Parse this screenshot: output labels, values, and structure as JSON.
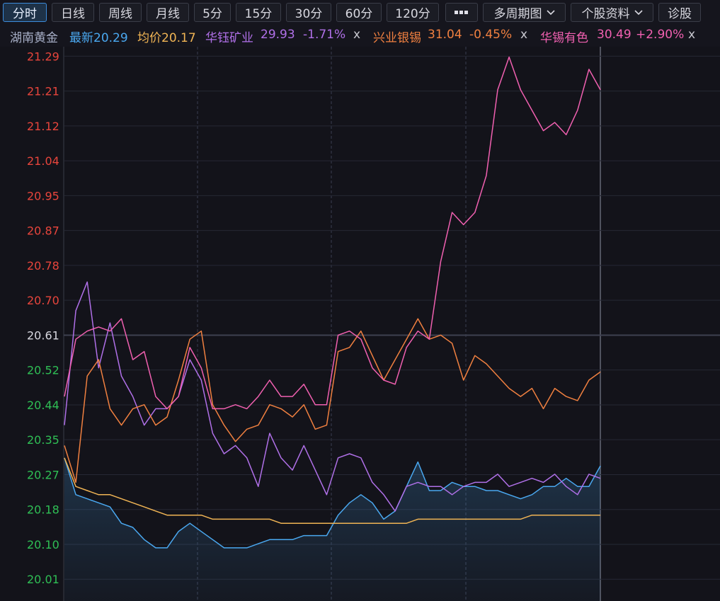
{
  "toolbar": {
    "tabs": [
      "分时",
      "日线",
      "周线",
      "月线",
      "5分",
      "15分",
      "30分",
      "60分",
      "120分"
    ],
    "menus": [
      "多周期图",
      "个股资料"
    ],
    "diagnose": "诊股"
  },
  "chart_data": {
    "type": "line",
    "stock": "湖南黄金",
    "categories": [
      null,
      null,
      null,
      null,
      null,
      null,
      null,
      null,
      null,
      null,
      null,
      null,
      null,
      null,
      null,
      null,
      null,
      null,
      null,
      null,
      null,
      null,
      null,
      null,
      null,
      null,
      null,
      null,
      null,
      null,
      null,
      null,
      null,
      null,
      null,
      null,
      null,
      null,
      null,
      null,
      null,
      null,
      null,
      null,
      null,
      null,
      null,
      null
    ],
    "series": [
      {
        "name": "最新20.29",
        "color": "#4aa8f0",
        "area": true,
        "values": [
          20.31,
          20.22,
          20.21,
          20.2,
          20.19,
          20.15,
          20.14,
          20.11,
          20.09,
          20.09,
          20.13,
          20.15,
          20.13,
          20.11,
          20.09,
          20.09,
          20.09,
          20.1,
          20.11,
          20.11,
          20.11,
          20.12,
          20.12,
          20.12,
          20.17,
          20.2,
          20.22,
          20.2,
          20.16,
          20.18,
          20.24,
          20.3,
          20.23,
          20.23,
          20.25,
          20.24,
          20.24,
          20.23,
          20.23,
          20.22,
          20.21,
          20.22,
          20.24,
          20.24,
          20.26,
          20.24,
          20.24,
          20.29
        ]
      },
      {
        "name": "均价20.17",
        "color": "#f0b454",
        "values": [
          20.31,
          20.24,
          20.23,
          20.22,
          20.22,
          20.21,
          20.2,
          20.19,
          20.18,
          20.17,
          20.17,
          20.17,
          20.17,
          20.16,
          20.16,
          20.16,
          20.16,
          20.16,
          20.16,
          20.15,
          20.15,
          20.15,
          20.15,
          20.15,
          20.15,
          20.15,
          20.15,
          20.15,
          20.15,
          20.15,
          20.15,
          20.16,
          20.16,
          20.16,
          20.16,
          20.16,
          20.16,
          20.16,
          20.16,
          20.16,
          20.16,
          20.17,
          20.17,
          20.17,
          20.17,
          20.17,
          20.17,
          20.17
        ]
      },
      {
        "name": "华钰矿业",
        "price": "29.93",
        "change": "-1.71%",
        "close": "x",
        "color": "#b070e8",
        "values": [
          20.39,
          20.67,
          20.74,
          20.53,
          20.64,
          20.51,
          20.46,
          20.39,
          20.43,
          20.43,
          20.46,
          20.55,
          20.5,
          20.37,
          20.32,
          20.34,
          20.31,
          20.24,
          20.37,
          20.31,
          20.28,
          20.34,
          20.28,
          20.22,
          20.31,
          20.32,
          20.31,
          20.25,
          20.22,
          20.18,
          20.24,
          20.25,
          20.24,
          20.24,
          20.22,
          20.24,
          20.25,
          20.25,
          20.27,
          20.24,
          20.25,
          20.26,
          20.25,
          20.27,
          20.24,
          20.22,
          20.27,
          20.26
        ]
      },
      {
        "name": "兴业银锡",
        "price": "31.04",
        "change": "-0.45%",
        "close": "x",
        "color": "#f08040",
        "values": [
          20.34,
          20.25,
          20.51,
          20.55,
          20.43,
          20.39,
          20.43,
          20.44,
          20.39,
          20.41,
          20.5,
          20.6,
          20.62,
          20.44,
          20.39,
          20.35,
          20.38,
          20.39,
          20.44,
          20.43,
          20.41,
          20.44,
          20.38,
          20.39,
          20.57,
          20.58,
          20.62,
          20.56,
          20.5,
          20.55,
          20.6,
          20.65,
          20.6,
          20.61,
          20.59,
          20.5,
          20.56,
          20.54,
          20.51,
          20.48,
          20.46,
          20.48,
          20.43,
          20.48,
          20.46,
          20.45,
          20.5,
          20.52
        ]
      },
      {
        "name": "华锡有色",
        "price": "30.49",
        "change": "+2.90%",
        "close": "x",
        "color": "#f060b0",
        "values": [
          20.46,
          20.6,
          20.62,
          20.63,
          20.62,
          20.65,
          20.55,
          20.57,
          20.46,
          20.43,
          20.46,
          20.58,
          20.53,
          20.43,
          20.43,
          20.44,
          20.43,
          20.46,
          20.5,
          20.46,
          20.46,
          20.49,
          20.44,
          20.44,
          20.61,
          20.62,
          20.6,
          20.53,
          20.5,
          20.49,
          20.58,
          20.62,
          20.6,
          20.79,
          20.91,
          20.88,
          20.91,
          21.0,
          21.21,
          21.29,
          21.21,
          21.16,
          21.11,
          21.13,
          21.1,
          21.16,
          21.26,
          21.21
        ]
      }
    ],
    "ylim": [
      19.96,
      21.31
    ],
    "yticks": [
      {
        "value": 21.292,
        "label": "21.29"
      },
      {
        "value": 21.2068,
        "label": "21.21"
      },
      {
        "value": 21.1215,
        "label": "21.12"
      },
      {
        "value": 21.0363,
        "label": "21.04"
      },
      {
        "value": 20.951,
        "label": "20.95"
      },
      {
        "value": 20.8658,
        "label": "20.87"
      },
      {
        "value": 20.7805,
        "label": "20.78"
      },
      {
        "value": 20.6953,
        "label": "20.70"
      },
      20.61,
      {
        "value": 20.5248,
        "label": "20.52"
      },
      {
        "value": 20.4395,
        "label": "20.44"
      },
      {
        "value": 20.3543,
        "label": "20.35"
      },
      {
        "value": 20.269,
        "label": "20.27"
      },
      {
        "value": 20.1838,
        "label": "20.18"
      },
      {
        "value": 20.0985,
        "label": "20.10"
      },
      {
        "value": 20.0133,
        "label": "20.01"
      }
    ],
    "baseline": 20.61,
    "grid": true
  }
}
